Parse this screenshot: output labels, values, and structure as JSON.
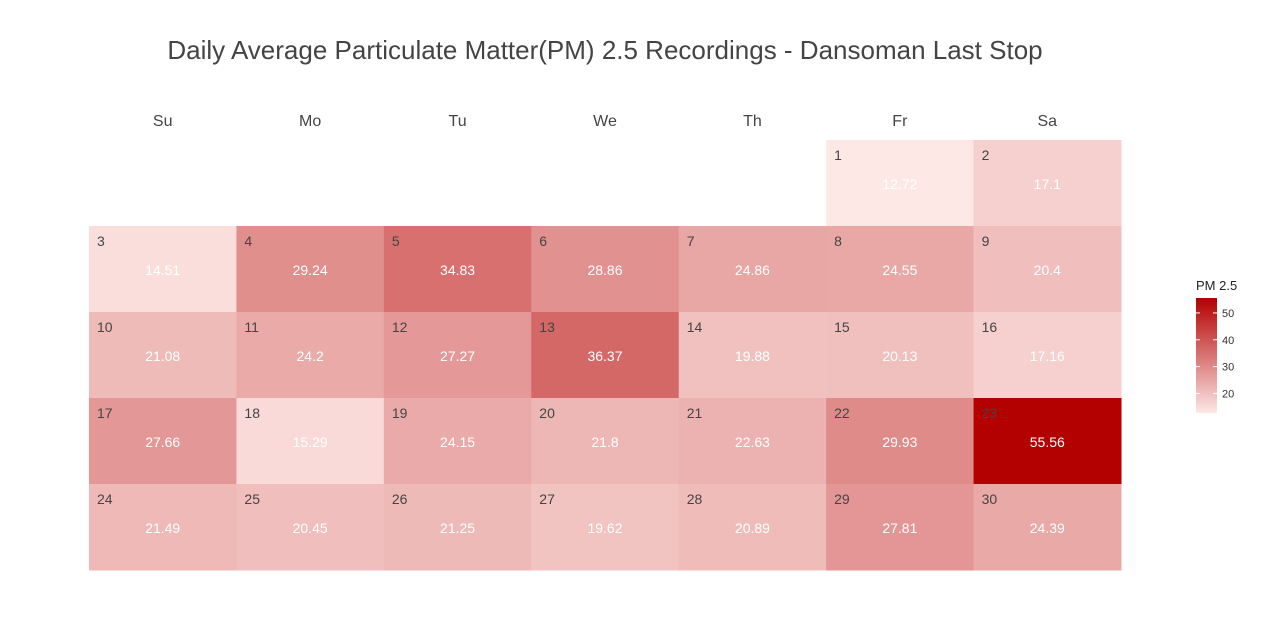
{
  "chart_data": {
    "type": "heatmap",
    "title": "Daily Average Particulate Matter(PM) 2.5 Recordings - Dansoman Last Stop",
    "weekdays": [
      "Su",
      "Mo",
      "Tu",
      "We",
      "Th",
      "Fr",
      "Sa"
    ],
    "first_weekday_index": 5,
    "days": [
      {
        "day": 1,
        "value": 12.72
      },
      {
        "day": 2,
        "value": 17.1
      },
      {
        "day": 3,
        "value": 14.51
      },
      {
        "day": 4,
        "value": 29.24
      },
      {
        "day": 5,
        "value": 34.83
      },
      {
        "day": 6,
        "value": 28.86
      },
      {
        "day": 7,
        "value": 24.86
      },
      {
        "day": 8,
        "value": 24.55
      },
      {
        "day": 9,
        "value": 20.4
      },
      {
        "day": 10,
        "value": 21.08
      },
      {
        "day": 11,
        "value": 24.2
      },
      {
        "day": 12,
        "value": 27.27
      },
      {
        "day": 13,
        "value": 36.37
      },
      {
        "day": 14,
        "value": 19.88
      },
      {
        "day": 15,
        "value": 20.13
      },
      {
        "day": 16,
        "value": 17.16
      },
      {
        "day": 17,
        "value": 27.66
      },
      {
        "day": 18,
        "value": 15.29
      },
      {
        "day": 19,
        "value": 24.15
      },
      {
        "day": 20,
        "value": 21.8
      },
      {
        "day": 21,
        "value": 22.63
      },
      {
        "day": 22,
        "value": 29.93
      },
      {
        "day": 23,
        "value": 55.56
      },
      {
        "day": 24,
        "value": 21.49
      },
      {
        "day": 25,
        "value": 20.45
      },
      {
        "day": 26,
        "value": 21.25
      },
      {
        "day": 27,
        "value": 19.62
      },
      {
        "day": 28,
        "value": 20.89
      },
      {
        "day": 29,
        "value": 27.81
      },
      {
        "day": 30,
        "value": 24.39
      }
    ],
    "legend": {
      "title": "PM 2.5",
      "ticks": [
        20,
        30,
        40,
        50
      ],
      "range": [
        12.72,
        55.56
      ],
      "placement": "right"
    },
    "colors": {
      "low": "#fde8e6",
      "high": "#b30000",
      "title": "#444444",
      "value_text": "#ffffff"
    }
  }
}
